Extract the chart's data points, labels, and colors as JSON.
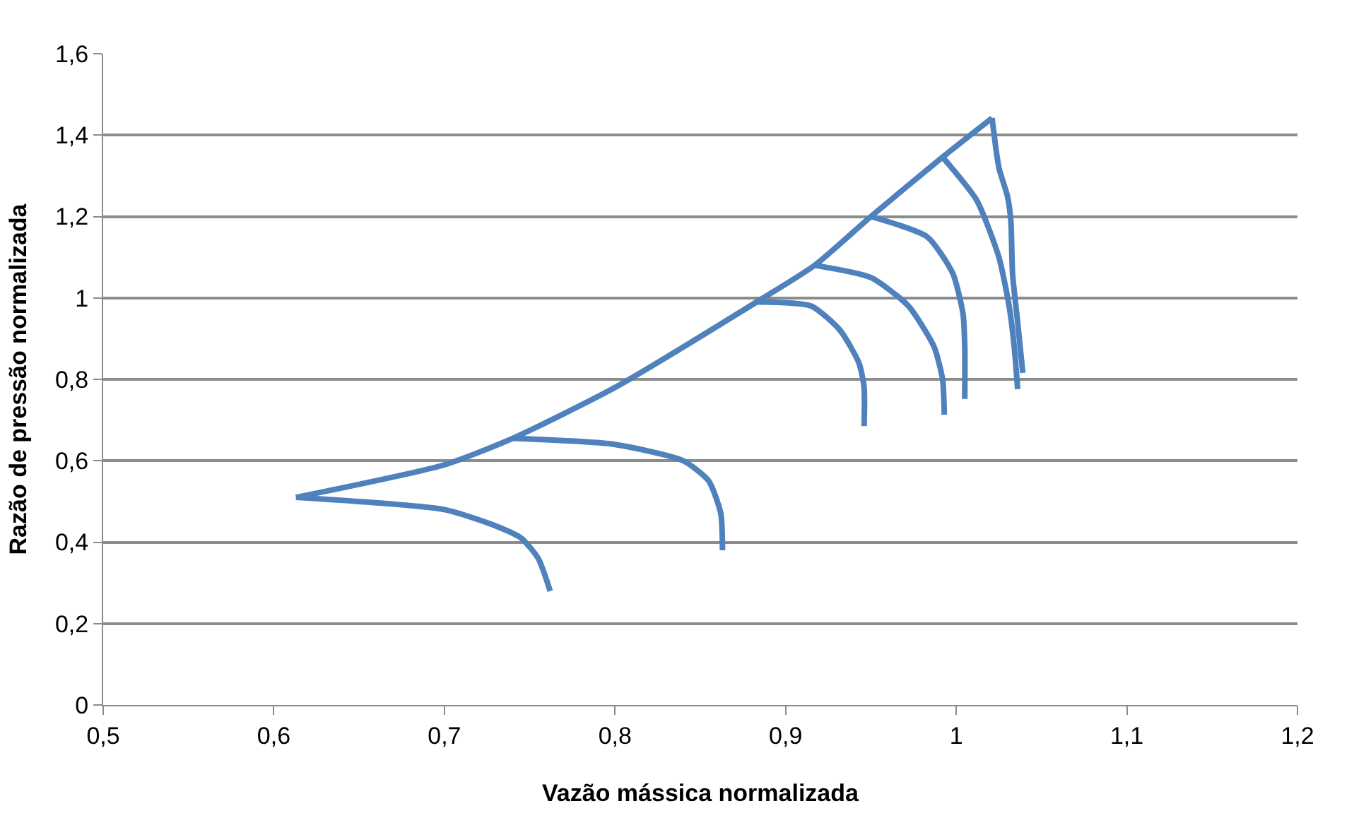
{
  "chart_data": {
    "type": "line",
    "xlabel": "Vazão mássica normalizada",
    "ylabel": "Razão de pressão normalizada",
    "xlim": [
      0.5,
      1.2
    ],
    "xticks": [
      {
        "value": 0.5,
        "label": "0,5"
      },
      {
        "value": 0.6,
        "label": "0,6"
      },
      {
        "value": 0.7,
        "label": "0,7"
      },
      {
        "value": 0.8,
        "label": "0,8"
      },
      {
        "value": 0.9,
        "label": "0,9"
      },
      {
        "value": 1,
        "label": "1"
      },
      {
        "value": 1.1,
        "label": "1,1"
      },
      {
        "value": 1.2,
        "label": "1,2"
      }
    ],
    "ylim": [
      0,
      1.6
    ],
    "yticks": [
      0,
      {
        "value": 0.2,
        "label": "0,2"
      },
      {
        "value": 0.4,
        "label": "0,4"
      },
      {
        "value": 0.6,
        "label": "0,6"
      },
      {
        "value": 0.8,
        "label": "0,8"
      },
      1,
      {
        "value": 1.2,
        "label": "1,2"
      },
      {
        "value": 1.4,
        "label": "1,4"
      },
      {
        "value": 1.6,
        "label": "1,6"
      }
    ],
    "grid": "y",
    "marker": "none",
    "line_style": "solid",
    "series": [
      {
        "color": "#4f81bd",
        "x": [
          0.613,
          0.7,
          0.74,
          0.8,
          0.883,
          0.917,
          0.95,
          0.992,
          1.021
        ],
        "values": [
          0.51,
          0.59,
          0.655,
          0.78,
          0.99,
          1.08,
          1.2,
          1.346,
          1.442
        ]
      },
      {
        "color": "#4f81bd",
        "x": [
          0.613,
          0.7,
          0.73,
          0.745,
          0.755,
          0.762
        ],
        "values": [
          0.51,
          0.48,
          0.44,
          0.41,
          0.36,
          0.28
        ]
      },
      {
        "color": "#4f81bd",
        "x": [
          0.74,
          0.8,
          0.84,
          0.855,
          0.862,
          0.863
        ],
        "values": [
          0.655,
          0.64,
          0.6,
          0.55,
          0.47,
          0.38
        ]
      },
      {
        "color": "#4f81bd",
        "x": [
          0.883,
          0.915,
          0.932,
          0.943,
          0.946,
          0.946
        ],
        "values": [
          0.99,
          0.98,
          0.92,
          0.84,
          0.78,
          0.685
        ]
      },
      {
        "color": "#4f81bd",
        "x": [
          0.917,
          0.95,
          0.972,
          0.987,
          0.992,
          0.993
        ],
        "values": [
          1.08,
          1.05,
          0.98,
          0.88,
          0.8,
          0.713
        ]
      },
      {
        "color": "#4f81bd",
        "x": [
          0.95,
          0.983,
          0.998,
          1.004,
          1.005,
          1.005
        ],
        "values": [
          1.2,
          1.15,
          1.06,
          0.96,
          0.88,
          0.752
        ]
      },
      {
        "color": "#4f81bd",
        "x": [
          0.992,
          1.012,
          1.025,
          1.031,
          1.034,
          1.036
        ],
        "values": [
          1.346,
          1.24,
          1.1,
          0.98,
          0.88,
          0.776
        ]
      },
      {
        "color": "#4f81bd",
        "x": [
          1.021,
          1.025,
          1.03,
          1.032,
          1.033,
          1.036,
          1.039
        ],
        "values": [
          1.442,
          1.32,
          1.25,
          1.19,
          1.06,
          0.94,
          0.816
        ]
      }
    ]
  }
}
